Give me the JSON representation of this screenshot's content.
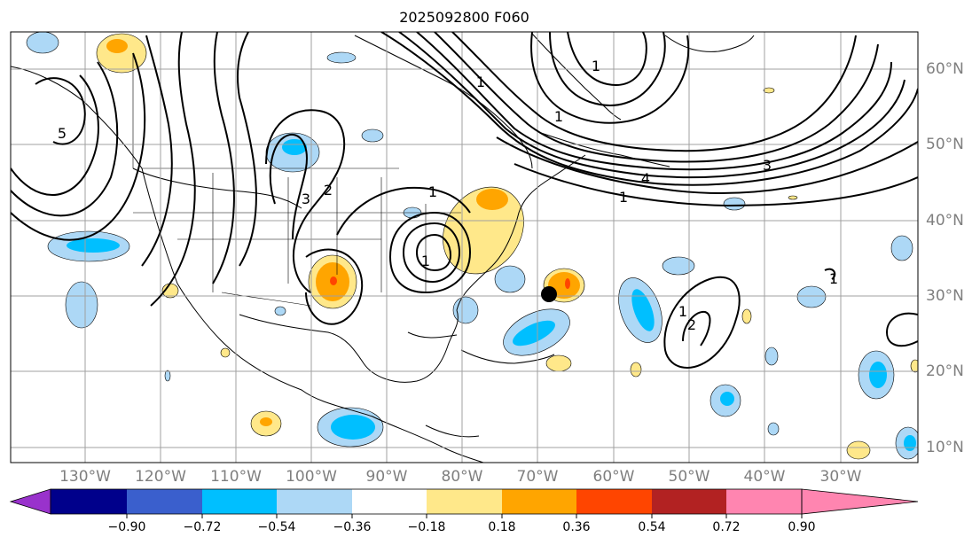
{
  "title": "2025092800 F060",
  "map": {
    "lon_ticks": [
      "130°W",
      "120°W",
      "110°W",
      "100°W",
      "90°W",
      "80°W",
      "70°W",
      "60°W",
      "50°W",
      "40°W",
      "30°W"
    ],
    "lat_ticks": [
      "60°N",
      "50°N",
      "40°N",
      "30°N",
      "20°N",
      "10°N"
    ],
    "contour_labels": [
      "5",
      "4",
      "3",
      "2",
      "1",
      "1",
      "3",
      "2",
      "1",
      "1",
      "1",
      "1",
      "1",
      "1"
    ],
    "marker": "storm-center-dot"
  },
  "colorbar": {
    "tick_labels": [
      "−0.90",
      "−0.72",
      "−0.54",
      "−0.36",
      "−0.18",
      "0.18",
      "0.36",
      "0.54",
      "0.72",
      "0.90"
    ],
    "colors": [
      "#9932cc",
      "#00008b",
      "#3a5fcd",
      "#00bfff",
      "#add8f6",
      "#ffffff",
      "#ffe88a",
      "#ffa500",
      "#ff4500",
      "#b22222",
      "#ff85b0"
    ]
  }
}
